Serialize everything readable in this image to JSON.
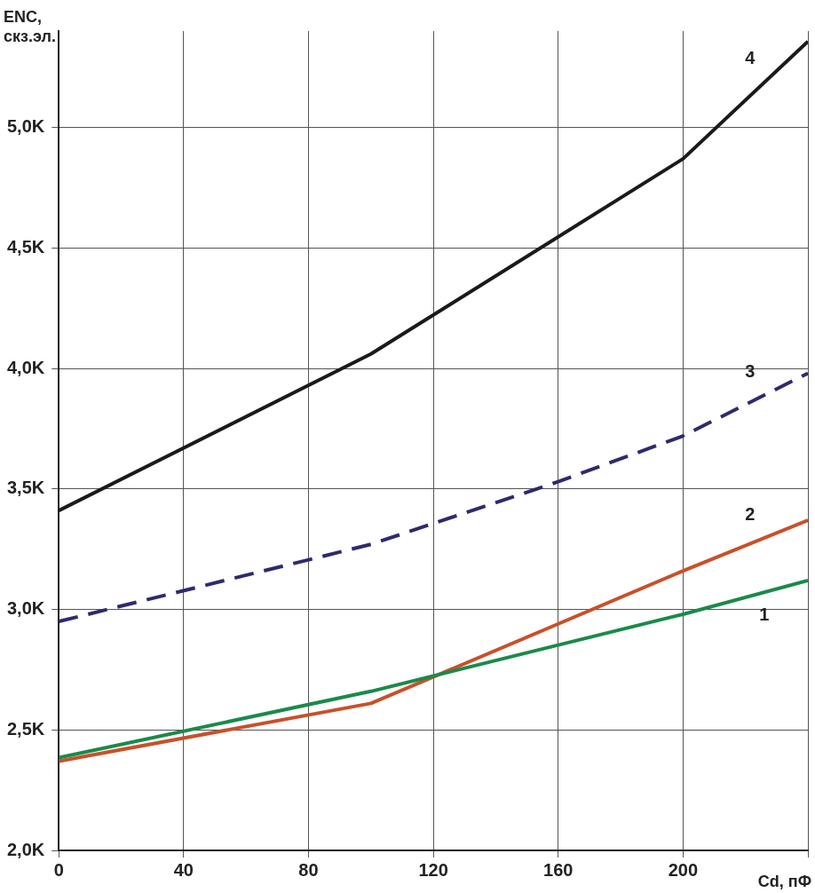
{
  "chart_data": {
    "type": "line",
    "xlabel": "Cd, пФ",
    "ylabel": "ENC, скз.эл.",
    "xlim": [
      0,
      240
    ],
    "xticks": [
      0,
      40,
      80,
      120,
      160,
      200,
      {
        "value": 240,
        "label": null
      }
    ],
    "ylim": [
      2000,
      5400
    ],
    "yticks": [
      {
        "value": 2000,
        "label": "2,0K"
      },
      {
        "value": 2500,
        "label": "2,5K"
      },
      {
        "value": 3000,
        "label": "3,0K"
      },
      {
        "value": 3500,
        "label": "3,5K"
      },
      {
        "value": 4000,
        "label": "4,0K"
      },
      {
        "value": 4500,
        "label": "4,5K"
      },
      {
        "value": 5000,
        "label": "5,0K"
      }
    ],
    "grid": true,
    "legend": false,
    "marker": "none",
    "series": [
      {
        "name": "1",
        "color": "#1a8a4a",
        "x": [
          0,
          100,
          200,
          240
        ],
        "values": [
          2385,
          2660,
          2980,
          3120
        ],
        "line_style": "solid"
      },
      {
        "name": "2",
        "color": "#c8502a",
        "x": [
          0,
          100,
          200,
          240
        ],
        "values": [
          2370,
          2610,
          3160,
          3370
        ],
        "line_style": "solid"
      },
      {
        "name": "3",
        "color": "#2e2a6e",
        "x": [
          0,
          100,
          160,
          200,
          240
        ],
        "values": [
          2950,
          3270,
          3530,
          3720,
          3980
        ],
        "line_style": "dashed"
      },
      {
        "name": "4",
        "color": "#1a1a1a",
        "x": [
          0,
          100,
          200,
          240
        ],
        "values": [
          3410,
          4060,
          4870,
          5357
        ],
        "line_style": "solid"
      }
    ]
  }
}
